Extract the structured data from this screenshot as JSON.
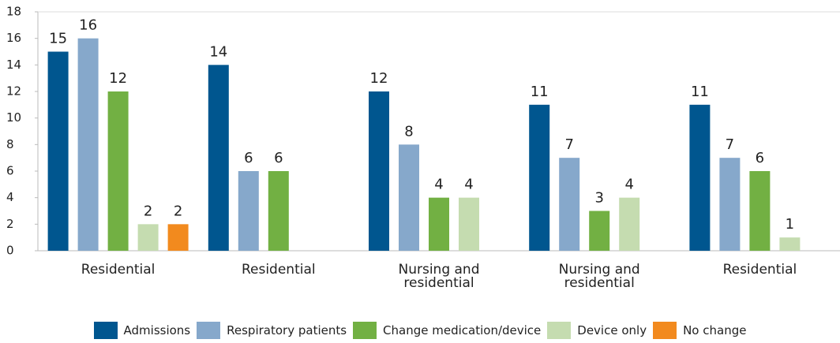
{
  "chart_data": {
    "type": "bar",
    "categories": [
      "Residential",
      "Residential",
      "Nursing and residential",
      "Nursing and residential",
      "Residential"
    ],
    "series": [
      {
        "name": "Admissions",
        "color": "#00568f",
        "values": [
          15,
          14,
          12,
          11,
          11
        ]
      },
      {
        "name": "Respiratory patients",
        "color": "#86a8cb",
        "values": [
          16,
          6,
          8,
          7,
          7
        ]
      },
      {
        "name": "Change medication/device",
        "color": "#72b043",
        "values": [
          12,
          6,
          4,
          3,
          6
        ]
      },
      {
        "name": "Device only",
        "color": "#c5dcb0",
        "values": [
          2,
          null,
          4,
          4,
          1
        ]
      },
      {
        "name": "No change",
        "color": "#f28a1e",
        "values": [
          2,
          null,
          null,
          null,
          null
        ]
      }
    ],
    "ylim": [
      0,
      18
    ],
    "yticks": [
      0,
      2,
      4,
      6,
      8,
      10,
      12,
      14,
      16,
      18
    ],
    "legend": "bottom"
  }
}
